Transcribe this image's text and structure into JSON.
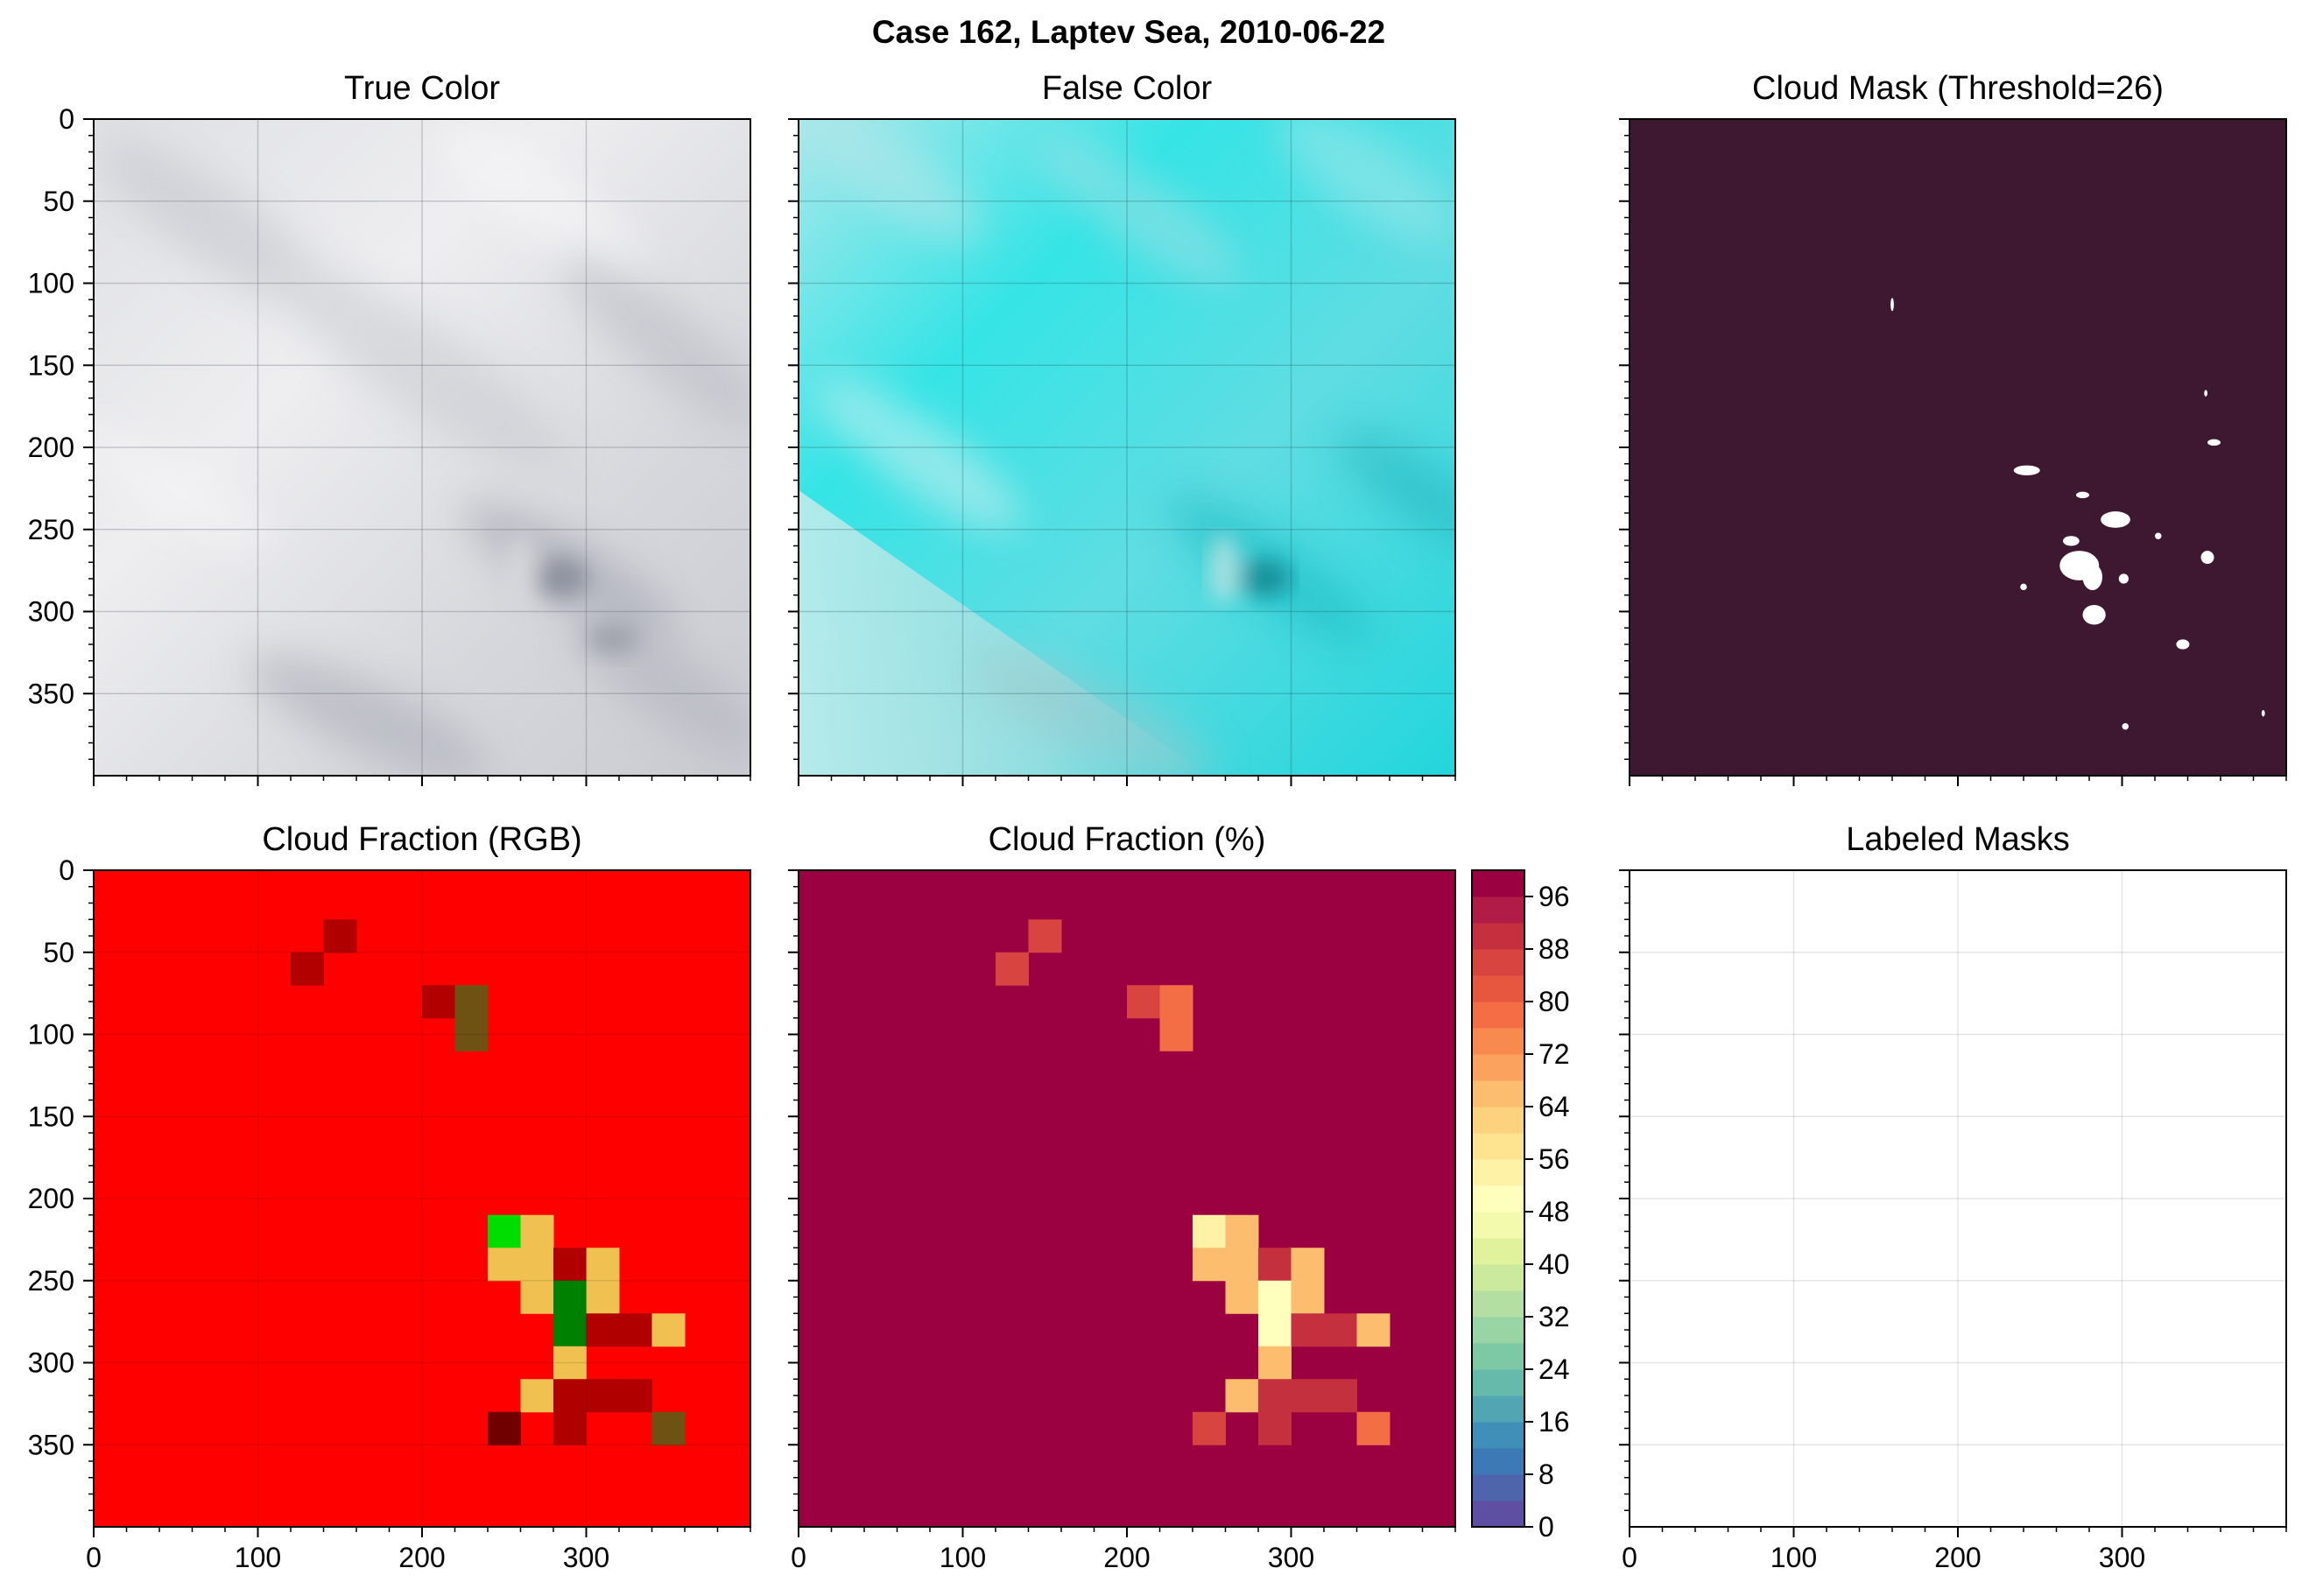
{
  "figure": {
    "suptitle": "Case 162, Laptev Sea, 2010-06-22"
  },
  "panels": {
    "true_color": {
      "title": "True Color"
    },
    "false_color": {
      "title": "False Color"
    },
    "cloud_mask": {
      "title": "Cloud Mask (Threshold=26)"
    },
    "cloud_fraction_rgb": {
      "title": "Cloud Fraction (RGB)"
    },
    "cloud_fraction_pct": {
      "title": "Cloud Fraction (%)"
    },
    "labeled_masks": {
      "title": "Labeled Masks"
    }
  },
  "colors": {
    "mask_background": "#3e1830",
    "mask_foreground": "#ffffff",
    "cf_rgb_background": "#ff0000",
    "cf_pct_background": "#9b0041"
  },
  "chart_data": [
    {
      "type": "heatmap",
      "id": "true_color",
      "title": "True Color",
      "ylim": [
        400,
        0
      ],
      "xlim": [
        0,
        400
      ],
      "yticks": [
        "0",
        "50",
        "100",
        "150",
        "200",
        "250",
        "300",
        "350"
      ],
      "xtick_labels_shown": false,
      "grid": true,
      "content": "grey-white cloud imagery"
    },
    {
      "type": "heatmap",
      "id": "false_color",
      "title": "False Color",
      "xlim": [
        0,
        400
      ],
      "ylim": [
        400,
        0
      ],
      "grid": true,
      "content": "cyan false color imagery"
    },
    {
      "type": "heatmap",
      "id": "cloud_mask",
      "title": "Cloud Mask (Threshold=26)",
      "xlim": [
        0,
        400
      ],
      "ylim": [
        400,
        0
      ],
      "grid": false,
      "blobs": [
        {
          "x": 160,
          "y": 113,
          "rx": 1,
          "ry": 4
        },
        {
          "x": 351,
          "y": 167,
          "rx": 1,
          "ry": 2
        },
        {
          "x": 356,
          "y": 197,
          "rx": 4,
          "ry": 2
        },
        {
          "x": 242,
          "y": 214,
          "rx": 8,
          "ry": 3
        },
        {
          "x": 276,
          "y": 229,
          "rx": 4,
          "ry": 2
        },
        {
          "x": 296,
          "y": 244,
          "rx": 9,
          "ry": 5
        },
        {
          "x": 269,
          "y": 257,
          "rx": 5,
          "ry": 3
        },
        {
          "x": 322,
          "y": 254,
          "rx": 2,
          "ry": 2
        },
        {
          "x": 274,
          "y": 272,
          "rx": 12,
          "ry": 9
        },
        {
          "x": 352,
          "y": 267,
          "rx": 4,
          "ry": 4
        },
        {
          "x": 282,
          "y": 279,
          "rx": 6,
          "ry": 8
        },
        {
          "x": 240,
          "y": 285,
          "rx": 2,
          "ry": 2
        },
        {
          "x": 283,
          "y": 302,
          "rx": 7,
          "ry": 6
        },
        {
          "x": 337,
          "y": 320,
          "rx": 4,
          "ry": 3
        },
        {
          "x": 301,
          "y": 280,
          "rx": 3,
          "ry": 3
        },
        {
          "x": 302,
          "y": 370,
          "rx": 2,
          "ry": 2
        },
        {
          "x": 386,
          "y": 362,
          "rx": 1,
          "ry": 2
        }
      ]
    },
    {
      "type": "heatmap",
      "id": "cloud_fraction_rgb",
      "title": "Cloud Fraction (RGB)",
      "xlim": [
        0,
        400
      ],
      "ylim": [
        400,
        0
      ],
      "xticks": [
        "0",
        "100",
        "200",
        "300"
      ],
      "yticks": [
        "0",
        "50",
        "100",
        "150",
        "200",
        "250",
        "300",
        "350"
      ],
      "cell_size": 20,
      "default_color": "#ff0000",
      "cells": [
        {
          "x": 140,
          "y": 30,
          "color": "#b00000"
        },
        {
          "x": 120,
          "y": 50,
          "color": "#b00000"
        },
        {
          "x": 200,
          "y": 70,
          "color": "#b00000"
        },
        {
          "x": 220,
          "y": 70,
          "color": "#6e5214"
        },
        {
          "x": 220,
          "y": 90,
          "color": "#6e5214"
        },
        {
          "x": 240,
          "y": 210,
          "color": "#00dd00"
        },
        {
          "x": 260,
          "y": 210,
          "color": "#f0c050"
        },
        {
          "x": 240,
          "y": 230,
          "color": "#f0c050"
        },
        {
          "x": 260,
          "y": 230,
          "color": "#f0c050"
        },
        {
          "x": 280,
          "y": 230,
          "color": "#b00000"
        },
        {
          "x": 300,
          "y": 230,
          "color": "#f0c050"
        },
        {
          "x": 260,
          "y": 250,
          "color": "#f0c050"
        },
        {
          "x": 280,
          "y": 250,
          "color": "#008000"
        },
        {
          "x": 300,
          "y": 250,
          "color": "#f0c050"
        },
        {
          "x": 280,
          "y": 270,
          "color": "#008000"
        },
        {
          "x": 300,
          "y": 270,
          "color": "#b00000"
        },
        {
          "x": 320,
          "y": 270,
          "color": "#b00000"
        },
        {
          "x": 340,
          "y": 270,
          "color": "#f0c050"
        },
        {
          "x": 280,
          "y": 290,
          "color": "#f0c050"
        },
        {
          "x": 260,
          "y": 310,
          "color": "#f0c050"
        },
        {
          "x": 280,
          "y": 310,
          "color": "#b00000"
        },
        {
          "x": 300,
          "y": 310,
          "color": "#b00000"
        },
        {
          "x": 320,
          "y": 310,
          "color": "#b00000"
        },
        {
          "x": 240,
          "y": 330,
          "color": "#700000"
        },
        {
          "x": 280,
          "y": 330,
          "color": "#b00000"
        },
        {
          "x": 340,
          "y": 330,
          "color": "#6e5214"
        }
      ]
    },
    {
      "type": "heatmap",
      "id": "cloud_fraction_pct",
      "title": "Cloud Fraction (%)",
      "xlim": [
        0,
        400
      ],
      "ylim": [
        400,
        0
      ],
      "xticks": [
        "0",
        "100",
        "200",
        "300"
      ],
      "cell_size": 20,
      "default_value": 100,
      "cells": [
        {
          "x": 140,
          "y": 30,
          "value": 86
        },
        {
          "x": 120,
          "y": 50,
          "value": 86
        },
        {
          "x": 200,
          "y": 70,
          "value": 86
        },
        {
          "x": 220,
          "y": 70,
          "value": 77
        },
        {
          "x": 220,
          "y": 90,
          "value": 77
        },
        {
          "x": 240,
          "y": 210,
          "value": 53
        },
        {
          "x": 260,
          "y": 210,
          "value": 66
        },
        {
          "x": 240,
          "y": 230,
          "value": 66
        },
        {
          "x": 260,
          "y": 230,
          "value": 66
        },
        {
          "x": 280,
          "y": 230,
          "value": 89
        },
        {
          "x": 300,
          "y": 230,
          "value": 66
        },
        {
          "x": 260,
          "y": 250,
          "value": 66
        },
        {
          "x": 280,
          "y": 250,
          "value": 51
        },
        {
          "x": 300,
          "y": 250,
          "value": 66
        },
        {
          "x": 280,
          "y": 270,
          "value": 51
        },
        {
          "x": 300,
          "y": 270,
          "value": 89
        },
        {
          "x": 320,
          "y": 270,
          "value": 89
        },
        {
          "x": 340,
          "y": 270,
          "value": 66
        },
        {
          "x": 280,
          "y": 290,
          "value": 66
        },
        {
          "x": 260,
          "y": 310,
          "value": 66
        },
        {
          "x": 280,
          "y": 310,
          "value": 89
        },
        {
          "x": 300,
          "y": 310,
          "value": 89
        },
        {
          "x": 320,
          "y": 310,
          "value": 89
        },
        {
          "x": 240,
          "y": 330,
          "value": 86
        },
        {
          "x": 280,
          "y": 330,
          "value": 89
        },
        {
          "x": 340,
          "y": 330,
          "value": 77
        }
      ],
      "colorbar": {
        "min": 0,
        "max": 100,
        "levels": 25,
        "tick_labels": [
          "0",
          "8",
          "16",
          "24",
          "32",
          "40",
          "48",
          "56",
          "64",
          "72",
          "80",
          "88",
          "96"
        ],
        "colors": [
          "#5e4fa2",
          "#4e64ab",
          "#3d79b4",
          "#3f8fb9",
          "#52a5b3",
          "#66baac",
          "#7dc9a5",
          "#98d4a4",
          "#b3dfa3",
          "#ccea9d",
          "#e0f29c",
          "#f3faae",
          "#fefebd",
          "#fef2a6",
          "#fee491",
          "#fdd27e",
          "#fdbd6e",
          "#fca25f",
          "#f88a50",
          "#f36d45",
          "#e7573f",
          "#d8443f",
          "#c5303f",
          "#b01c47",
          "#9b0041"
        ]
      }
    },
    {
      "type": "heatmap",
      "id": "labeled_masks",
      "title": "Labeled Masks",
      "xlim": [
        0,
        400
      ],
      "ylim": [
        400,
        0
      ],
      "xticks": [
        "0",
        "100",
        "200",
        "300"
      ],
      "grid": true,
      "content": "empty"
    }
  ]
}
